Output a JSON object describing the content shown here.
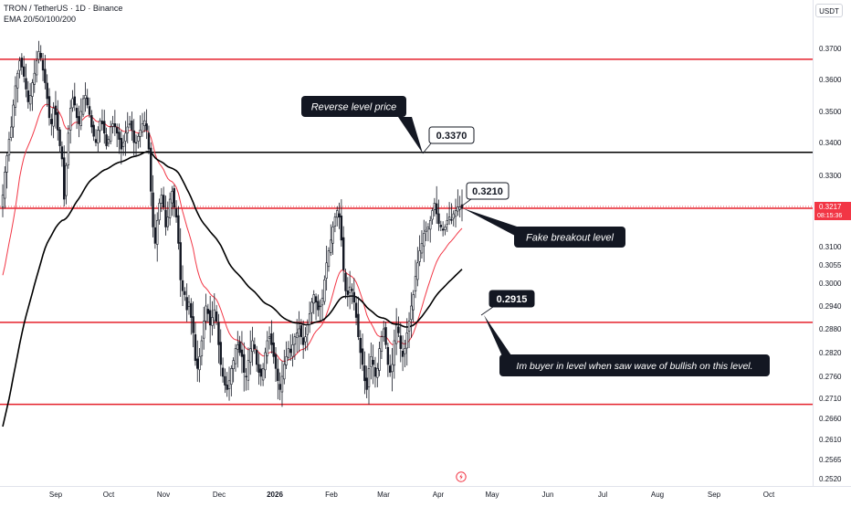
{
  "header": {
    "title": "TRON / TetherUS · 1D · Binance",
    "indicator": "EMA 20/50/100/200"
  },
  "currency": "USDT",
  "countdown": "08:15:36",
  "colors": {
    "bull": "#131722",
    "bear": "#131722",
    "ema20": "#f23645",
    "ema200": "#000000",
    "red_level": "#e5212b",
    "black_level": "#000000",
    "last_price_bg": "#f23645",
    "callout_bg": "#131722"
  },
  "chart_data": {
    "type": "candlestick",
    "symbol": "TRONUSDT",
    "interval": "1D",
    "y_ticks": [
      "0.3700",
      "0.3600",
      "0.3500",
      "0.3400",
      "0.3300",
      "0.3217",
      "0.3100",
      "0.3055",
      "0.3000",
      "0.2940",
      "0.2880",
      "0.2820",
      "0.2760",
      "0.2710",
      "0.2660",
      "0.2610",
      "0.2565",
      "0.2520"
    ],
    "x_ticks": [
      "Sep",
      "Oct",
      "Nov",
      "Dec",
      "2026",
      "Feb",
      "Mar",
      "Apr",
      "May",
      "Jun",
      "Jul",
      "Aug",
      "Sep",
      "Oct"
    ],
    "last_price": 0.3217,
    "levels": [
      {
        "price": 0.3665,
        "color": "red"
      },
      {
        "price": 0.337,
        "color": "black"
      },
      {
        "price": 0.3217,
        "color": "red"
      },
      {
        "price": 0.2897,
        "color": "red"
      },
      {
        "price": 0.2695,
        "color": "red"
      }
    ],
    "annotations": [
      {
        "text": "Reverse level price",
        "style": "callout"
      },
      {
        "text": "0.3370",
        "style": "label"
      },
      {
        "text": "0.3210",
        "style": "label"
      },
      {
        "text": "Fake breakout level",
        "style": "callout"
      },
      {
        "text": "0.2915",
        "style": "label-dark"
      },
      {
        "text": "Im buyer in level when saw wave of bullish on this level.",
        "style": "callout"
      }
    ],
    "ohlc_close": [
      0.325,
      0.331,
      0.336,
      0.341,
      0.345,
      0.352,
      0.358,
      0.362,
      0.366,
      0.364,
      0.361,
      0.357,
      0.353,
      0.355,
      0.359,
      0.362,
      0.366,
      0.369,
      0.367,
      0.363,
      0.359,
      0.354,
      0.348,
      0.346,
      0.351,
      0.349,
      0.344,
      0.339,
      0.335,
      0.324,
      0.333,
      0.343,
      0.351,
      0.354,
      0.352,
      0.348,
      0.346,
      0.35,
      0.354,
      0.355,
      0.352,
      0.349,
      0.345,
      0.342,
      0.34,
      0.344,
      0.347,
      0.346,
      0.343,
      0.339,
      0.341,
      0.345,
      0.346,
      0.345,
      0.343,
      0.341,
      0.338,
      0.34,
      0.343,
      0.345,
      0.346,
      0.344,
      0.34,
      0.34,
      0.342,
      0.344,
      0.346,
      0.347,
      0.344,
      0.338,
      0.326,
      0.316,
      0.311,
      0.318,
      0.323,
      0.325,
      0.322,
      0.316,
      0.319,
      0.324,
      0.326,
      0.322,
      0.319,
      0.311,
      0.301,
      0.298,
      0.297,
      0.293,
      0.295,
      0.291,
      0.287,
      0.28,
      0.278,
      0.281,
      0.285,
      0.29,
      0.294,
      0.292,
      0.289,
      0.291,
      0.293,
      0.29,
      0.284,
      0.279,
      0.276,
      0.274,
      0.273,
      0.275,
      0.278,
      0.28,
      0.283,
      0.284,
      0.282,
      0.281,
      0.277,
      0.276,
      0.28,
      0.283,
      0.285,
      0.283,
      0.279,
      0.277,
      0.276,
      0.278,
      0.282,
      0.285,
      0.286,
      0.284,
      0.281,
      0.278,
      0.275,
      0.273,
      0.276,
      0.279,
      0.281,
      0.283,
      0.282,
      0.284,
      0.286,
      0.287,
      0.288,
      0.286,
      0.284,
      0.286,
      0.289,
      0.292,
      0.295,
      0.297,
      0.295,
      0.293,
      0.294,
      0.296,
      0.301,
      0.306,
      0.309,
      0.312,
      0.316,
      0.319,
      0.321,
      0.319,
      0.312,
      0.304,
      0.298,
      0.297,
      0.299,
      0.298,
      0.295,
      0.291,
      0.286,
      0.282,
      0.279,
      0.275,
      0.273,
      0.278,
      0.281,
      0.279,
      0.276,
      0.278,
      0.283,
      0.286,
      0.288,
      0.284,
      0.279,
      0.277,
      0.279,
      0.285,
      0.289,
      0.287,
      0.283,
      0.281,
      0.283,
      0.287,
      0.29,
      0.294,
      0.297,
      0.302,
      0.306,
      0.309,
      0.311,
      0.314,
      0.315,
      0.316,
      0.318,
      0.321,
      0.323,
      0.32,
      0.317,
      0.316,
      0.315,
      0.316,
      0.318,
      0.319,
      0.318,
      0.32,
      0.321,
      0.322,
      0.322,
      0.3217
    ]
  }
}
